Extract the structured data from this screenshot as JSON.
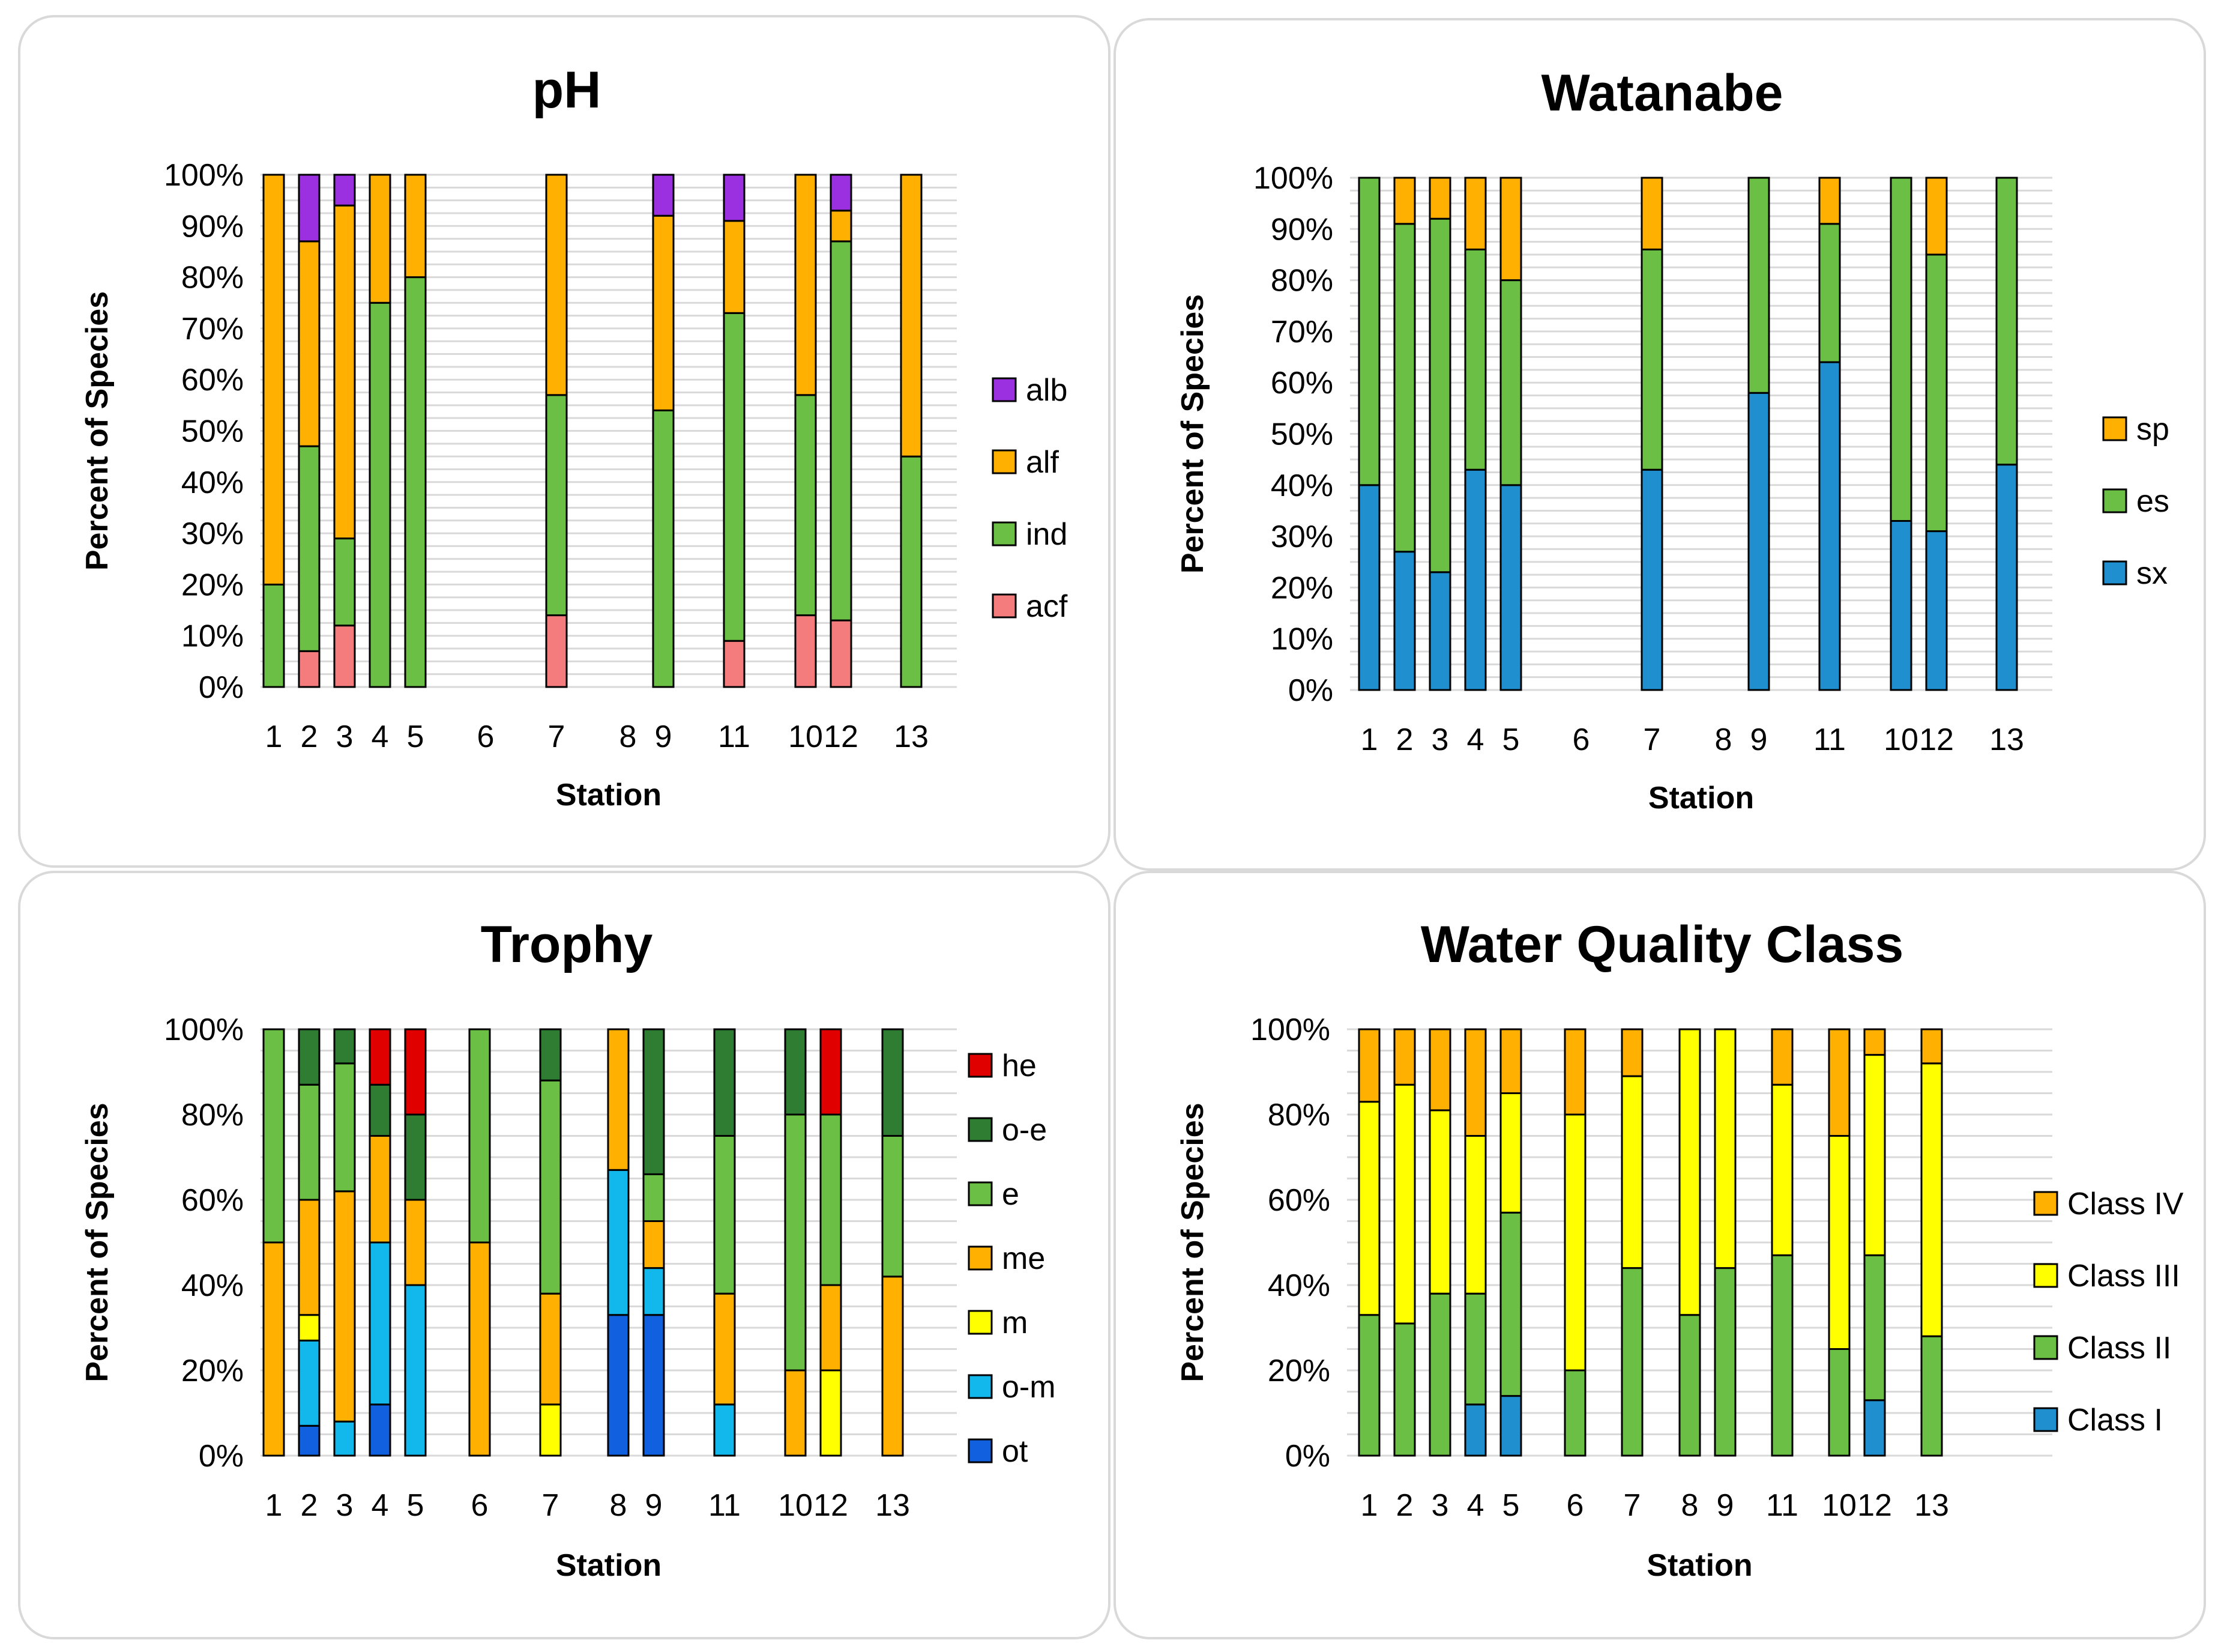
{
  "chart_data": [
    {
      "type": "bar",
      "stacked": true,
      "title": "pH",
      "xlabel": "Station",
      "ylabel": "Percent of Species",
      "ylim": [
        0,
        100
      ],
      "yticks": [
        "0%",
        "10%",
        "20%",
        "30%",
        "40%",
        "50%",
        "60%",
        "70%",
        "80%",
        "90%",
        "100%"
      ],
      "categories": [
        "1",
        "2",
        "3",
        "4",
        "5",
        "6",
        "7",
        "8",
        "9",
        "11",
        "10",
        "12",
        "13"
      ],
      "legend_order": [
        "alb",
        "alf",
        "ind",
        "acf"
      ],
      "colors": {
        "acf": "#f47c7c",
        "ind": "#6cbf45",
        "alf": "#ffb000",
        "alb": "#9b30e0"
      },
      "series": [
        {
          "name": "acf",
          "values": [
            0,
            7,
            12,
            0,
            0,
            0,
            14,
            0,
            0,
            9,
            14,
            13,
            0
          ]
        },
        {
          "name": "ind",
          "values": [
            20,
            40,
            17,
            75,
            80,
            0,
            43,
            0,
            54,
            64,
            43,
            74,
            45
          ]
        },
        {
          "name": "alf",
          "values": [
            80,
            40,
            65,
            25,
            20,
            0,
            43,
            0,
            38,
            18,
            43,
            6,
            55
          ]
        },
        {
          "name": "alb",
          "values": [
            0,
            13,
            6,
            0,
            0,
            0,
            0,
            0,
            8,
            9,
            0,
            7,
            0
          ]
        }
      ]
    },
    {
      "type": "bar",
      "stacked": true,
      "title": "Watanabe",
      "xlabel": "Station",
      "ylabel": "Percent of Species",
      "ylim": [
        0,
        100
      ],
      "yticks": [
        "0%",
        "10%",
        "20%",
        "30%",
        "40%",
        "50%",
        "60%",
        "70%",
        "80%",
        "90%",
        "100%"
      ],
      "categories": [
        "1",
        "2",
        "3",
        "4",
        "5",
        "6",
        "7",
        "8",
        "9",
        "11",
        "10",
        "12",
        "13"
      ],
      "legend_order": [
        "sp",
        "es",
        "sx"
      ],
      "colors": {
        "sx": "#1f8fcf",
        "es": "#6cbf45",
        "sp": "#ffb000"
      },
      "series": [
        {
          "name": "sx",
          "values": [
            40,
            27,
            23,
            43,
            40,
            0,
            43,
            0,
            58,
            64,
            33,
            31,
            44
          ]
        },
        {
          "name": "es",
          "values": [
            60,
            64,
            69,
            43,
            40,
            0,
            43,
            0,
            42,
            27,
            67,
            54,
            56
          ]
        },
        {
          "name": "sp",
          "values": [
            0,
            9,
            8,
            14,
            20,
            0,
            14,
            0,
            0,
            9,
            0,
            15,
            0
          ]
        }
      ]
    },
    {
      "type": "bar",
      "stacked": true,
      "title": "Trophy",
      "xlabel": "Station",
      "ylabel": "Percent of Species",
      "ylim": [
        0,
        100
      ],
      "yticks": [
        "0%",
        "20%",
        "40%",
        "60%",
        "80%",
        "100%"
      ],
      "categories": [
        "1",
        "2",
        "3",
        "4",
        "5",
        "6",
        "7",
        "8",
        "9",
        "11",
        "10",
        "12",
        "13"
      ],
      "legend_order": [
        "he",
        "o-e",
        "e",
        "me",
        "m",
        "o-m",
        "ot"
      ],
      "colors": {
        "ot": "#1060e0",
        "o-m": "#12b8ec",
        "m": "#ffff00",
        "me": "#ffb000",
        "e": "#6cbf45",
        "o-e": "#2e7d32",
        "he": "#e00000"
      },
      "series": [
        {
          "name": "ot",
          "values": [
            0,
            7,
            0,
            12,
            0,
            0,
            0,
            33,
            33,
            0,
            0,
            0,
            0
          ]
        },
        {
          "name": "o-m",
          "values": [
            0,
            20,
            8,
            38,
            40,
            0,
            0,
            34,
            11,
            12,
            0,
            0,
            0
          ]
        },
        {
          "name": "m",
          "values": [
            0,
            6,
            0,
            0,
            0,
            0,
            12,
            0,
            0,
            0,
            0,
            20,
            0
          ]
        },
        {
          "name": "me",
          "values": [
            50,
            27,
            54,
            25,
            20,
            50,
            26,
            33,
            11,
            26,
            20,
            20,
            42
          ]
        },
        {
          "name": "e",
          "values": [
            50,
            27,
            30,
            0,
            0,
            50,
            50,
            0,
            11,
            37,
            60,
            40,
            33
          ]
        },
        {
          "name": "o-e",
          "values": [
            0,
            13,
            8,
            12,
            20,
            0,
            12,
            0,
            34,
            25,
            20,
            0,
            25
          ]
        },
        {
          "name": "he",
          "values": [
            0,
            0,
            0,
            13,
            20,
            0,
            0,
            0,
            0,
            0,
            0,
            20,
            0
          ]
        }
      ]
    },
    {
      "type": "bar",
      "stacked": true,
      "title": "Water Quality Class",
      "xlabel": "Station",
      "ylabel": "Percent of Species",
      "ylim": [
        0,
        100
      ],
      "yticks": [
        "0%",
        "20%",
        "40%",
        "60%",
        "80%",
        "100%"
      ],
      "categories": [
        "1",
        "2",
        "3",
        "4",
        "5",
        "6",
        "7",
        "8",
        "9",
        "11",
        "10",
        "12",
        "13"
      ],
      "legend_order": [
        "Class IV",
        "Class III",
        "Class II",
        "Class I"
      ],
      "colors": {
        "Class I": "#1f8fcf",
        "Class II": "#6cbf45",
        "Class III": "#ffff00",
        "Class IV": "#ffb000"
      },
      "series": [
        {
          "name": "Class I",
          "values": [
            0,
            0,
            0,
            12,
            14,
            0,
            0,
            0,
            0,
            0,
            0,
            13,
            0
          ]
        },
        {
          "name": "Class II",
          "values": [
            33,
            31,
            38,
            26,
            43,
            20,
            44,
            33,
            44,
            47,
            25,
            34,
            28
          ]
        },
        {
          "name": "Class III",
          "values": [
            50,
            56,
            43,
            37,
            28,
            60,
            45,
            67,
            56,
            40,
            50,
            47,
            64
          ]
        },
        {
          "name": "Class IV",
          "values": [
            17,
            13,
            19,
            25,
            15,
            20,
            11,
            0,
            0,
            13,
            25,
            6,
            8
          ]
        }
      ]
    }
  ]
}
